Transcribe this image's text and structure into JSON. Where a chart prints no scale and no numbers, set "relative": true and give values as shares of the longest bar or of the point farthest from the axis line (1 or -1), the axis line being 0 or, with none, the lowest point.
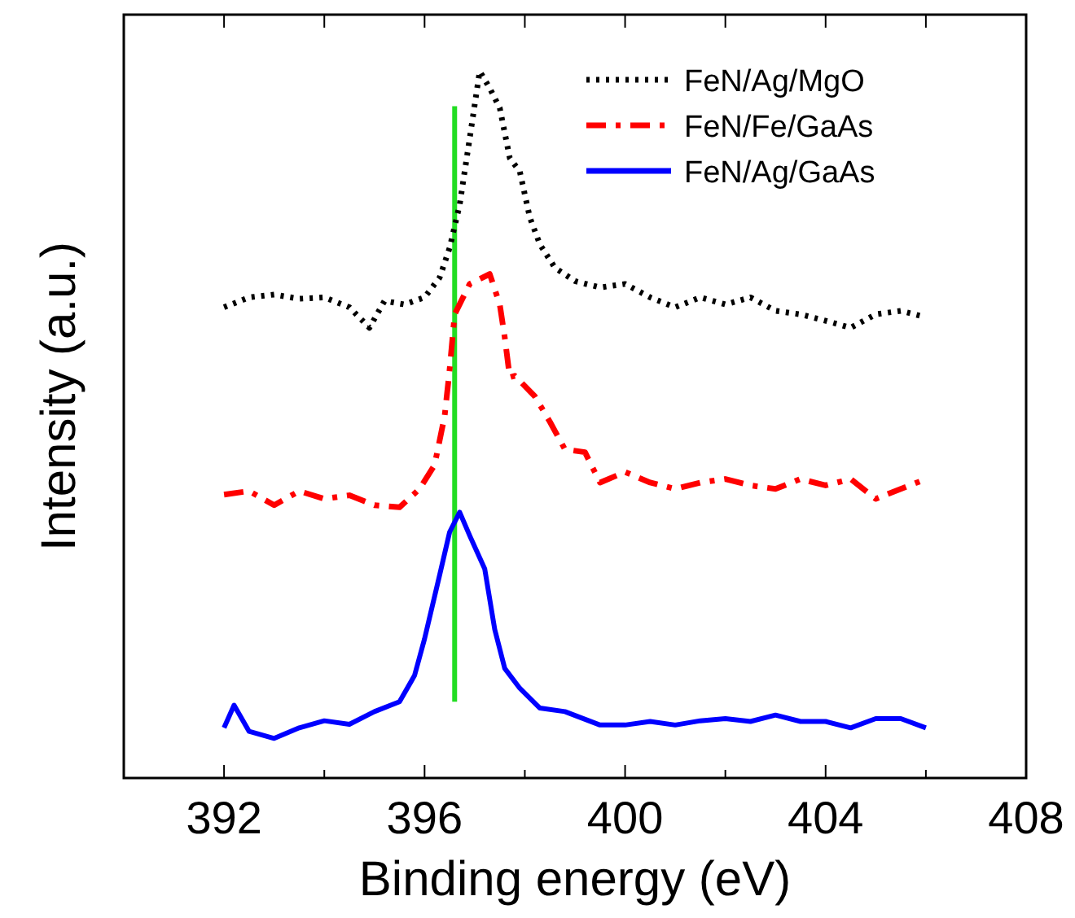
{
  "chart_data": {
    "type": "line",
    "relative": true,
    "xlabel": "Binding energy (eV)",
    "ylabel": "Intensity (a.u.)",
    "xlim": [
      390,
      408
    ],
    "xticks": [
      392,
      {
        "value": 394,
        "label": null
      },
      396,
      {
        "value": 398,
        "label": null
      },
      400,
      {
        "value": 402,
        "label": null
      },
      404,
      {
        "value": 406,
        "label": null
      },
      408
    ],
    "legend": "top right",
    "grid": false,
    "marker": "none",
    "ref_lines": [
      {
        "axis": "x",
        "value": 396.6,
        "color": "#22dd22",
        "line_style": "solid"
      }
    ],
    "series": [
      {
        "name": "FeN/Ag/MgO",
        "color": "#000000",
        "line_style": "dotted",
        "x": [
          392,
          392.5,
          393,
          393.5,
          394,
          394.5,
          394.9,
          395.2,
          395.6,
          396,
          396.3,
          396.5,
          396.7,
          396.9,
          397.1,
          397.3,
          397.5,
          397.7,
          397.9,
          398.1,
          398.3,
          398.6,
          399,
          399.5,
          400,
          400.5,
          401,
          401.5,
          402,
          402.5,
          403,
          403.5,
          404,
          404.5,
          405,
          405.5,
          406
        ],
        "values": [
          0.666,
          0.68,
          0.684,
          0.678,
          0.68,
          0.666,
          0.637,
          0.675,
          0.67,
          0.68,
          0.708,
          0.75,
          0.811,
          0.905,
          1.0,
          0.976,
          0.948,
          0.877,
          0.858,
          0.793,
          0.755,
          0.722,
          0.703,
          0.694,
          0.699,
          0.68,
          0.666,
          0.68,
          0.67,
          0.68,
          0.661,
          0.656,
          0.647,
          0.637,
          0.656,
          0.661,
          0.652
        ]
      },
      {
        "name": "FeN/Fe/GaAs",
        "color": "#ff0000",
        "line_style": "dashed",
        "x": [
          392,
          392.5,
          393,
          393.5,
          394,
          394.5,
          395,
          395.5,
          395.9,
          396.2,
          396.4,
          396.5,
          396.6,
          396.9,
          397.3,
          397.5,
          397.6,
          397.7,
          397.8,
          398.2,
          398.5,
          398.8,
          399.2,
          399.5,
          400,
          400.5,
          401,
          401.5,
          402,
          402.5,
          403,
          403.5,
          404,
          404.5,
          405,
          405.5,
          406
        ],
        "values": [
          0.401,
          0.406,
          0.386,
          0.406,
          0.395,
          0.4,
          0.386,
          0.383,
          0.409,
          0.443,
          0.512,
          0.578,
          0.656,
          0.699,
          0.713,
          0.67,
          0.623,
          0.567,
          0.569,
          0.54,
          0.504,
          0.465,
          0.461,
          0.418,
          0.433,
          0.418,
          0.409,
          0.418,
          0.423,
          0.414,
          0.409,
          0.423,
          0.414,
          0.423,
          0.395,
          0.409,
          0.423
        ]
      },
      {
        "name": "FeN/Ag/GaAs",
        "color": "#0000ff",
        "line_style": "solid",
        "x": [
          392,
          392.2,
          392.5,
          393,
          393.5,
          394,
          394.5,
          395,
          395.5,
          395.8,
          396,
          396.3,
          396.5,
          396.7,
          396.9,
          397.2,
          397.4,
          397.6,
          397.9,
          398.3,
          398.8,
          399.5,
          400,
          400.5,
          401,
          401.5,
          402,
          402.5,
          403,
          403.5,
          404,
          404.5,
          405,
          405.5,
          406
        ],
        "values": [
          0.071,
          0.103,
          0.066,
          0.056,
          0.071,
          0.081,
          0.076,
          0.094,
          0.108,
          0.145,
          0.197,
          0.287,
          0.348,
          0.376,
          0.343,
          0.296,
          0.21,
          0.155,
          0.127,
          0.099,
          0.094,
          0.075,
          0.075,
          0.08,
          0.075,
          0.081,
          0.084,
          0.08,
          0.089,
          0.08,
          0.08,
          0.071,
          0.084,
          0.084,
          0.071
        ]
      }
    ]
  }
}
